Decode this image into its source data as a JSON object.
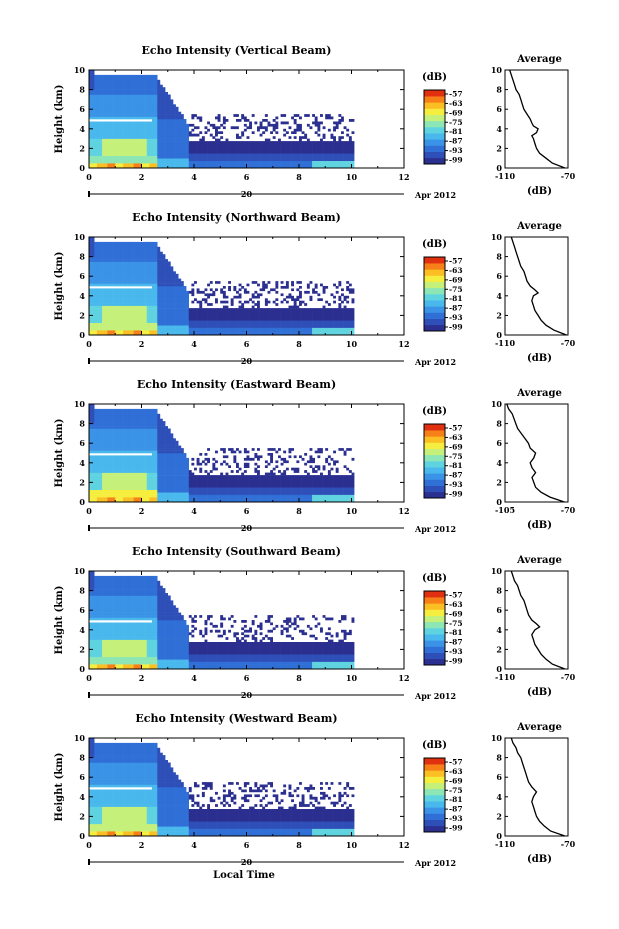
{
  "figure": {
    "x_label": "Local Time",
    "date_label": "Apr 2012",
    "date_day": "20",
    "colorbar_unit": "(dB)",
    "colorbar_ticks": [
      "-57",
      "-63",
      "-69",
      "-75",
      "-81",
      "-87",
      "-93",
      "-99"
    ],
    "average_title": "Average",
    "average_xlabel": "(dB)",
    "y_label": "Height (km)",
    "colormap": [
      "#2b2f8f",
      "#2f4fb8",
      "#2f6fd6",
      "#3a93e6",
      "#49b8ec",
      "#5fd3e0",
      "#8de6b5",
      "#c5f07a",
      "#f6ee3e",
      "#fbbf24",
      "#f77f18",
      "#e0300f"
    ]
  },
  "chart_data": [
    {
      "type": "heatmap",
      "title": "Echo Intensity (Vertical Beam)",
      "ylabel": "Height (km)",
      "xlabel": "",
      "xlim": [
        0,
        12
      ],
      "ylim": [
        0,
        10
      ],
      "x_ticks": [
        "0",
        "2",
        "4",
        "6",
        "8",
        "10",
        "12"
      ],
      "y_ticks": [
        "0",
        "2",
        "4",
        "6",
        "8",
        "10"
      ],
      "colorbar": {
        "unit": "(dB)",
        "range": [
          -99,
          -57
        ],
        "ticks": [
          -57,
          -63,
          -69,
          -75,
          -81,
          -87,
          -93,
          -99
        ]
      },
      "average": {
        "title": "Average",
        "xlabel": "(dB)",
        "xlim": [
          -110,
          -70
        ],
        "x_ticks": [
          "-110",
          "-70"
        ],
        "height": [
          0,
          0.5,
          1,
          1.5,
          2,
          2.5,
          3,
          3.3,
          3.6,
          4,
          4.3,
          4.6,
          5,
          5.5,
          6,
          6.5,
          7,
          7.5,
          8,
          8.5,
          9,
          9.5,
          10
        ],
        "value": [
          -72,
          -80,
          -84,
          -88,
          -90,
          -91,
          -92,
          -93,
          -90,
          -89,
          -92,
          -93,
          -94,
          -96,
          -98,
          -99,
          -100,
          -101,
          -103,
          -104,
          -105,
          -106,
          -107
        ]
      }
    },
    {
      "type": "heatmap",
      "title": "Echo Intensity (Northward Beam)",
      "ylabel": "Height (km)",
      "xlabel": "",
      "xlim": [
        0,
        12
      ],
      "ylim": [
        0,
        10
      ],
      "x_ticks": [
        "0",
        "2",
        "4",
        "6",
        "8",
        "10",
        "12"
      ],
      "y_ticks": [
        "0",
        "2",
        "4",
        "6",
        "8",
        "10"
      ],
      "colorbar": {
        "unit": "(dB)",
        "range": [
          -99,
          -57
        ],
        "ticks": [
          -57,
          -63,
          -69,
          -75,
          -81,
          -87,
          -93,
          -99
        ]
      },
      "average": {
        "title": "Average",
        "xlabel": "(dB)",
        "xlim": [
          -110,
          -70
        ],
        "x_ticks": [
          "-110",
          "-70"
        ],
        "height": [
          0,
          0.5,
          1,
          1.5,
          2,
          2.5,
          3,
          3.5,
          4,
          4.3,
          4.6,
          5,
          5.5,
          6,
          6.5,
          7,
          7.5,
          8,
          8.5,
          9,
          9.5,
          10
        ],
        "value": [
          -71,
          -79,
          -84,
          -87,
          -89,
          -91,
          -92,
          -93,
          -92,
          -89,
          -91,
          -94,
          -96,
          -97,
          -98,
          -100,
          -101,
          -102,
          -103,
          -104,
          -105,
          -106
        ]
      }
    },
    {
      "type": "heatmap",
      "title": "Echo Intensity (Eastward Beam)",
      "ylabel": "Height (km)",
      "xlabel": "",
      "xlim": [
        0,
        12
      ],
      "ylim": [
        0,
        10
      ],
      "x_ticks": [
        "0",
        "2",
        "4",
        "6",
        "8",
        "10",
        "12"
      ],
      "y_ticks": [
        "0",
        "2",
        "4",
        "6",
        "8",
        "10"
      ],
      "colorbar": {
        "unit": "(dB)",
        "range": [
          -99,
          -57
        ],
        "ticks": [
          -57,
          -63,
          -69,
          -75,
          -81,
          -87,
          -93,
          -99
        ]
      },
      "average": {
        "title": "Average",
        "xlabel": "(dB)",
        "xlim": [
          -105,
          -70
        ],
        "x_ticks": [
          "-105",
          "-70"
        ],
        "height": [
          0,
          0.5,
          1,
          1.5,
          2,
          2.5,
          3,
          3.5,
          4,
          4.5,
          5,
          5.5,
          6,
          6.5,
          7,
          7.5,
          8,
          8.5,
          9,
          9.5,
          10
        ],
        "value": [
          -72,
          -80,
          -85,
          -88,
          -89,
          -90,
          -88,
          -90,
          -91,
          -89,
          -88,
          -91,
          -92,
          -94,
          -96,
          -98,
          -99,
          -100,
          -101,
          -103,
          -104
        ]
      }
    },
    {
      "type": "heatmap",
      "title": "Echo Intensity (Southward Beam)",
      "ylabel": "Height (km)",
      "xlabel": "",
      "xlim": [
        0,
        12
      ],
      "ylim": [
        0,
        10
      ],
      "x_ticks": [
        "0",
        "2",
        "4",
        "6",
        "8",
        "10",
        "12"
      ],
      "y_ticks": [
        "0",
        "2",
        "4",
        "6",
        "8",
        "10"
      ],
      "colorbar": {
        "unit": "(dB)",
        "range": [
          -99,
          -57
        ],
        "ticks": [
          -57,
          -63,
          -69,
          -75,
          -81,
          -87,
          -93,
          -99
        ]
      },
      "average": {
        "title": "Average",
        "xlabel": "(dB)",
        "xlim": [
          -110,
          -70
        ],
        "x_ticks": [
          "-110",
          "-70"
        ],
        "height": [
          0,
          0.5,
          1,
          1.5,
          2,
          2.5,
          3,
          3.5,
          4,
          4.3,
          4.6,
          5,
          5.5,
          6,
          6.5,
          7,
          7.5,
          8,
          8.5,
          9,
          9.5,
          10
        ],
        "value": [
          -72,
          -80,
          -84,
          -87,
          -89,
          -91,
          -92,
          -93,
          -91,
          -88,
          -90,
          -93,
          -95,
          -96,
          -97,
          -98,
          -100,
          -101,
          -102,
          -104,
          -105,
          -106
        ]
      }
    },
    {
      "type": "heatmap",
      "title": "Echo Intensity (Westward Beam)",
      "ylabel": "Height (km)",
      "xlabel": "Local Time",
      "xlim": [
        0,
        12
      ],
      "ylim": [
        0,
        10
      ],
      "x_ticks": [
        "0",
        "2",
        "4",
        "6",
        "8",
        "10",
        "12"
      ],
      "y_ticks": [
        "0",
        "2",
        "4",
        "6",
        "8",
        "10"
      ],
      "colorbar": {
        "unit": "(dB)",
        "range": [
          -99,
          -57
        ],
        "ticks": [
          -57,
          -63,
          -69,
          -75,
          -81,
          -87,
          -93,
          -99
        ]
      },
      "average": {
        "title": "Average",
        "xlabel": "(dB)",
        "xlim": [
          -110,
          -70
        ],
        "x_ticks": [
          "-110",
          "-70"
        ],
        "height": [
          0,
          0.5,
          1,
          1.5,
          2,
          2.5,
          3,
          3.5,
          4,
          4.5,
          5,
          5.5,
          6,
          6.5,
          7,
          7.5,
          8,
          8.5,
          9,
          9.5,
          10
        ],
        "value": [
          -72,
          -81,
          -85,
          -88,
          -90,
          -91,
          -92,
          -93,
          -92,
          -90,
          -93,
          -95,
          -96,
          -97,
          -98,
          -99,
          -100,
          -102,
          -103,
          -105,
          -106
        ]
      }
    }
  ]
}
